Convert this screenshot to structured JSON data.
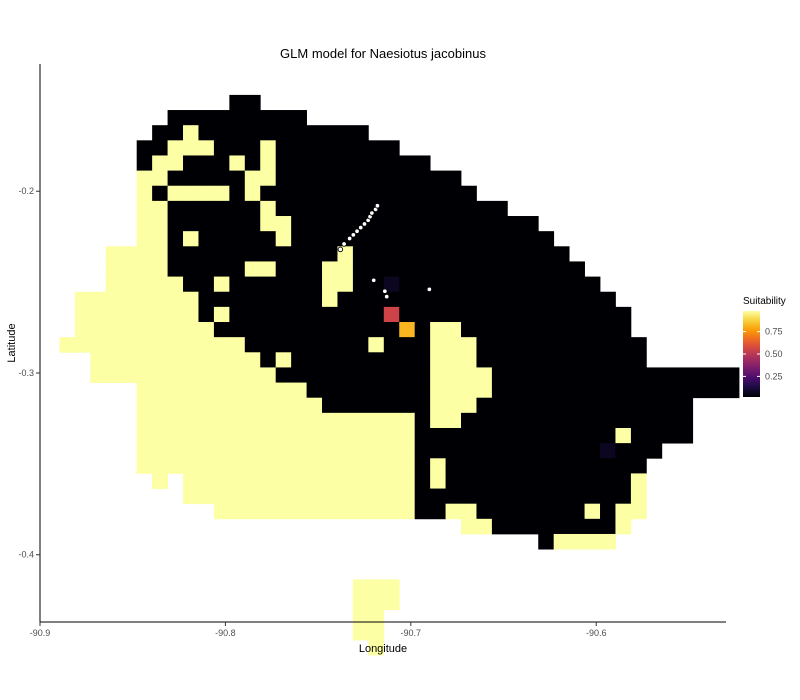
{
  "chart_data": {
    "type": "heatmap",
    "title": "GLM model for Naesiotus jacobinus",
    "xlabel": "Longitude",
    "ylabel": "Latitude",
    "xlim": [
      -90.9,
      -90.53
    ],
    "ylim": [
      -0.437,
      -0.13
    ],
    "x_ticks": [
      {
        "value": -90.9,
        "label": "-90.9"
      },
      {
        "value": -90.8,
        "label": "-90.8"
      },
      {
        "value": -90.7,
        "label": "-90.7"
      },
      {
        "value": -90.6,
        "label": "-90.6"
      }
    ],
    "y_ticks": [
      {
        "value": -0.2,
        "label": "-0.2"
      },
      {
        "value": -0.3,
        "label": "-0.3"
      },
      {
        "value": -0.4,
        "label": "-0.4"
      }
    ],
    "grid": false,
    "legend": {
      "title": "Suitability",
      "placement": "right",
      "ticks": [
        {
          "value": 0.25,
          "label": "0.25"
        },
        {
          "value": 0.5,
          "label": "0.50"
        },
        {
          "value": 0.75,
          "label": "0.75"
        }
      ],
      "range": [
        0.02,
        0.98
      ],
      "colors": [
        "#000004",
        "#1b0c41",
        "#4a0c6b",
        "#781c6d",
        "#a52c60",
        "#cf4446",
        "#ed6925",
        "#fb9b06",
        "#f7d13d",
        "#fcffa4"
      ]
    },
    "grid_spec": {
      "x0": -90.8895,
      "y0": -0.147,
      "dx": 0.00833,
      "dy": 0.00833,
      "rows": [
        {
          "row": 0,
          "spans": [
            [
              11,
              12,
              0.02
            ]
          ]
        },
        {
          "row": 1,
          "spans": [
            [
              7,
              15,
              0.02
            ]
          ]
        },
        {
          "row": 2,
          "spans": [
            [
              6,
              7,
              0.02
            ],
            [
              8,
              8,
              0.98
            ],
            [
              9,
              19,
              0.02
            ]
          ]
        },
        {
          "row": 3,
          "spans": [
            [
              5,
              6,
              0.02
            ],
            [
              7,
              9,
              0.98
            ],
            [
              10,
              12,
              0.02
            ],
            [
              13,
              13,
              0.98
            ],
            [
              14,
              21,
              0.02
            ]
          ]
        },
        {
          "row": 4,
          "spans": [
            [
              5,
              5,
              0.02
            ],
            [
              6,
              7,
              0.98
            ],
            [
              8,
              10,
              0.02
            ],
            [
              11,
              11,
              0.98
            ],
            [
              12,
              12,
              0.02
            ],
            [
              13,
              13,
              0.98
            ],
            [
              14,
              23,
              0.02
            ]
          ]
        },
        {
          "row": 5,
          "spans": [
            [
              5,
              6,
              0.98
            ],
            [
              7,
              11,
              0.02
            ],
            [
              12,
              13,
              0.98
            ],
            [
              14,
              25,
              0.02
            ]
          ]
        },
        {
          "row": 6,
          "spans": [
            [
              5,
              5,
              0.98
            ],
            [
              6,
              6,
              0.02
            ],
            [
              7,
              10,
              0.98
            ],
            [
              11,
              11,
              0.02
            ],
            [
              12,
              12,
              0.98
            ],
            [
              13,
              26,
              0.02
            ]
          ]
        },
        {
          "row": 7,
          "spans": [
            [
              5,
              6,
              0.98
            ],
            [
              7,
              12,
              0.02
            ],
            [
              13,
              13,
              0.98
            ],
            [
              14,
              28,
              0.02
            ]
          ]
        },
        {
          "row": 8,
          "spans": [
            [
              5,
              6,
              0.98
            ],
            [
              7,
              12,
              0.02
            ],
            [
              13,
              14,
              0.98
            ],
            [
              15,
              30,
              0.02
            ]
          ]
        },
        {
          "row": 9,
          "spans": [
            [
              5,
              6,
              0.98
            ],
            [
              7,
              7,
              0.02
            ],
            [
              8,
              8,
              0.98
            ],
            [
              9,
              13,
              0.02
            ],
            [
              14,
              14,
              0.98
            ],
            [
              15,
              31,
              0.02
            ]
          ]
        },
        {
          "row": 10,
          "spans": [
            [
              3,
              6,
              0.98
            ],
            [
              7,
              17,
              0.02
            ],
            [
              18,
              18,
              0.98
            ],
            [
              19,
              32,
              0.02
            ]
          ]
        },
        {
          "row": 11,
          "spans": [
            [
              3,
              6,
              0.98
            ],
            [
              7,
              11,
              0.02
            ],
            [
              12,
              13,
              0.98
            ],
            [
              14,
              16,
              0.02
            ],
            [
              17,
              18,
              0.98
            ],
            [
              19,
              33,
              0.02
            ]
          ]
        },
        {
          "row": 12,
          "spans": [
            [
              3,
              7,
              0.98
            ],
            [
              8,
              9,
              0.02
            ],
            [
              10,
              10,
              0.98
            ],
            [
              11,
              16,
              0.02
            ],
            [
              17,
              18,
              0.98
            ],
            [
              19,
              20,
              0.02
            ],
            [
              21,
              21,
              0.07
            ],
            [
              22,
              34,
              0.02
            ]
          ]
        },
        {
          "row": 13,
          "spans": [
            [
              1,
              8,
              0.98
            ],
            [
              9,
              16,
              0.02
            ],
            [
              17,
              17,
              0.98
            ],
            [
              18,
              35,
              0.02
            ]
          ]
        },
        {
          "row": 14,
          "spans": [
            [
              1,
              8,
              0.98
            ],
            [
              9,
              9,
              0.02
            ],
            [
              10,
              10,
              0.98
            ],
            [
              11,
              20,
              0.02
            ],
            [
              21,
              21,
              0.55
            ],
            [
              22,
              36,
              0.02
            ]
          ]
        },
        {
          "row": 15,
          "spans": [
            [
              1,
              9,
              0.98
            ],
            [
              10,
              18,
              0.02
            ],
            [
              19,
              19,
              0.02
            ],
            [
              20,
              20,
              0.02
            ],
            [
              21,
              21,
              0.02
            ],
            [
              22,
              22,
              0.82
            ],
            [
              23,
              23,
              0.02
            ],
            [
              24,
              25,
              0.98
            ],
            [
              26,
              36,
              0.02
            ]
          ]
        },
        {
          "row": 16,
          "spans": [
            [
              0,
              11,
              0.98
            ],
            [
              12,
              19,
              0.02
            ],
            [
              20,
              20,
              0.98
            ],
            [
              21,
              23,
              0.02
            ],
            [
              24,
              26,
              0.98
            ],
            [
              27,
              37,
              0.02
            ]
          ]
        },
        {
          "row": 17,
          "spans": [
            [
              2,
              12,
              0.98
            ],
            [
              13,
              13,
              0.02
            ],
            [
              14,
              14,
              0.98
            ],
            [
              15,
              23,
              0.02
            ],
            [
              24,
              26,
              0.98
            ],
            [
              27,
              37,
              0.02
            ]
          ]
        },
        {
          "row": 18,
          "spans": [
            [
              2,
              13,
              0.98
            ],
            [
              14,
              23,
              0.02
            ],
            [
              24,
              27,
              0.98
            ],
            [
              28,
              38,
              0.02
            ],
            [
              39,
              43,
              0.02
            ]
          ]
        },
        {
          "row": 19,
          "spans": [
            [
              5,
              15,
              0.98
            ],
            [
              16,
              23,
              0.02
            ],
            [
              24,
              27,
              0.98
            ],
            [
              28,
              43,
              0.02
            ]
          ]
        },
        {
          "row": 20,
          "spans": [
            [
              5,
              16,
              0.98
            ],
            [
              17,
              23,
              0.02
            ],
            [
              24,
              26,
              0.98
            ],
            [
              27,
              40,
              0.02
            ]
          ]
        },
        {
          "row": 21,
          "spans": [
            [
              5,
              22,
              0.98
            ],
            [
              23,
              23,
              0.02
            ],
            [
              24,
              25,
              0.98
            ],
            [
              26,
              40,
              0.02
            ]
          ]
        },
        {
          "row": 22,
          "spans": [
            [
              5,
              22,
              0.98
            ],
            [
              23,
              24,
              0.02
            ],
            [
              25,
              35,
              0.02
            ],
            [
              36,
              36,
              0.98
            ],
            [
              37,
              40,
              0.02
            ]
          ]
        },
        {
          "row": 23,
          "spans": [
            [
              5,
              22,
              0.98
            ],
            [
              23,
              24,
              0.02
            ],
            [
              25,
              34,
              0.02
            ],
            [
              35,
              35,
              0.07
            ],
            [
              36,
              38,
              0.02
            ]
          ]
        },
        {
          "row": 24,
          "spans": [
            [
              5,
              22,
              0.98
            ],
            [
              23,
              23,
              0.02
            ],
            [
              24,
              24,
              0.98
            ],
            [
              25,
              37,
              0.02
            ]
          ]
        },
        {
          "row": 25,
          "spans": [
            [
              6,
              6,
              0.98
            ],
            [
              8,
              22,
              0.98
            ],
            [
              23,
              23,
              0.02
            ],
            [
              24,
              24,
              0.98
            ],
            [
              25,
              36,
              0.02
            ],
            [
              37,
              37,
              0.98
            ]
          ]
        },
        {
          "row": 26,
          "spans": [
            [
              8,
              22,
              0.98
            ],
            [
              23,
              36,
              0.02
            ],
            [
              37,
              37,
              0.98
            ]
          ]
        },
        {
          "row": 27,
          "spans": [
            [
              10,
              22,
              0.98
            ],
            [
              23,
              24,
              0.02
            ],
            [
              25,
              26,
              0.98
            ],
            [
              27,
              27,
              0.02
            ],
            [
              28,
              33,
              0.02
            ],
            [
              34,
              34,
              0.98
            ],
            [
              35,
              35,
              0.02
            ],
            [
              36,
              37,
              0.98
            ]
          ]
        },
        {
          "row": 28,
          "spans": [
            [
              26,
              27,
              0.98
            ],
            [
              28,
              35,
              0.02
            ],
            [
              36,
              36,
              0.98
            ]
          ]
        },
        {
          "row": 29,
          "spans": [
            [
              31,
              31,
              0.02
            ],
            [
              32,
              35,
              0.98
            ]
          ]
        },
        {
          "row": 32,
          "spans": [
            [
              19,
              21,
              0.98
            ]
          ]
        },
        {
          "row": 33,
          "spans": [
            [
              19,
              21,
              0.98
            ]
          ]
        },
        {
          "row": 34,
          "spans": [
            [
              19,
              20,
              0.98
            ]
          ]
        },
        {
          "row": 35,
          "spans": [
            [
              19,
              20,
              0.98
            ]
          ]
        },
        {
          "row": 36,
          "spans": [
            [
              20,
              20,
              0.98
            ]
          ]
        }
      ]
    },
    "points": [
      [
        -90.738,
        -0.232
      ],
      [
        -90.736,
        -0.229
      ],
      [
        -90.733,
        -0.226
      ],
      [
        -90.731,
        -0.224
      ],
      [
        -90.729,
        -0.222
      ],
      [
        -90.727,
        -0.22
      ],
      [
        -90.725,
        -0.218
      ],
      [
        -90.723,
        -0.216
      ],
      [
        -90.722,
        -0.214
      ],
      [
        -90.721,
        -0.212
      ],
      [
        -90.719,
        -0.21
      ],
      [
        -90.718,
        -0.208
      ],
      [
        -90.72,
        -0.249
      ],
      [
        -90.714,
        -0.255
      ],
      [
        -90.713,
        -0.258
      ],
      [
        -90.69,
        -0.254
      ]
    ]
  }
}
